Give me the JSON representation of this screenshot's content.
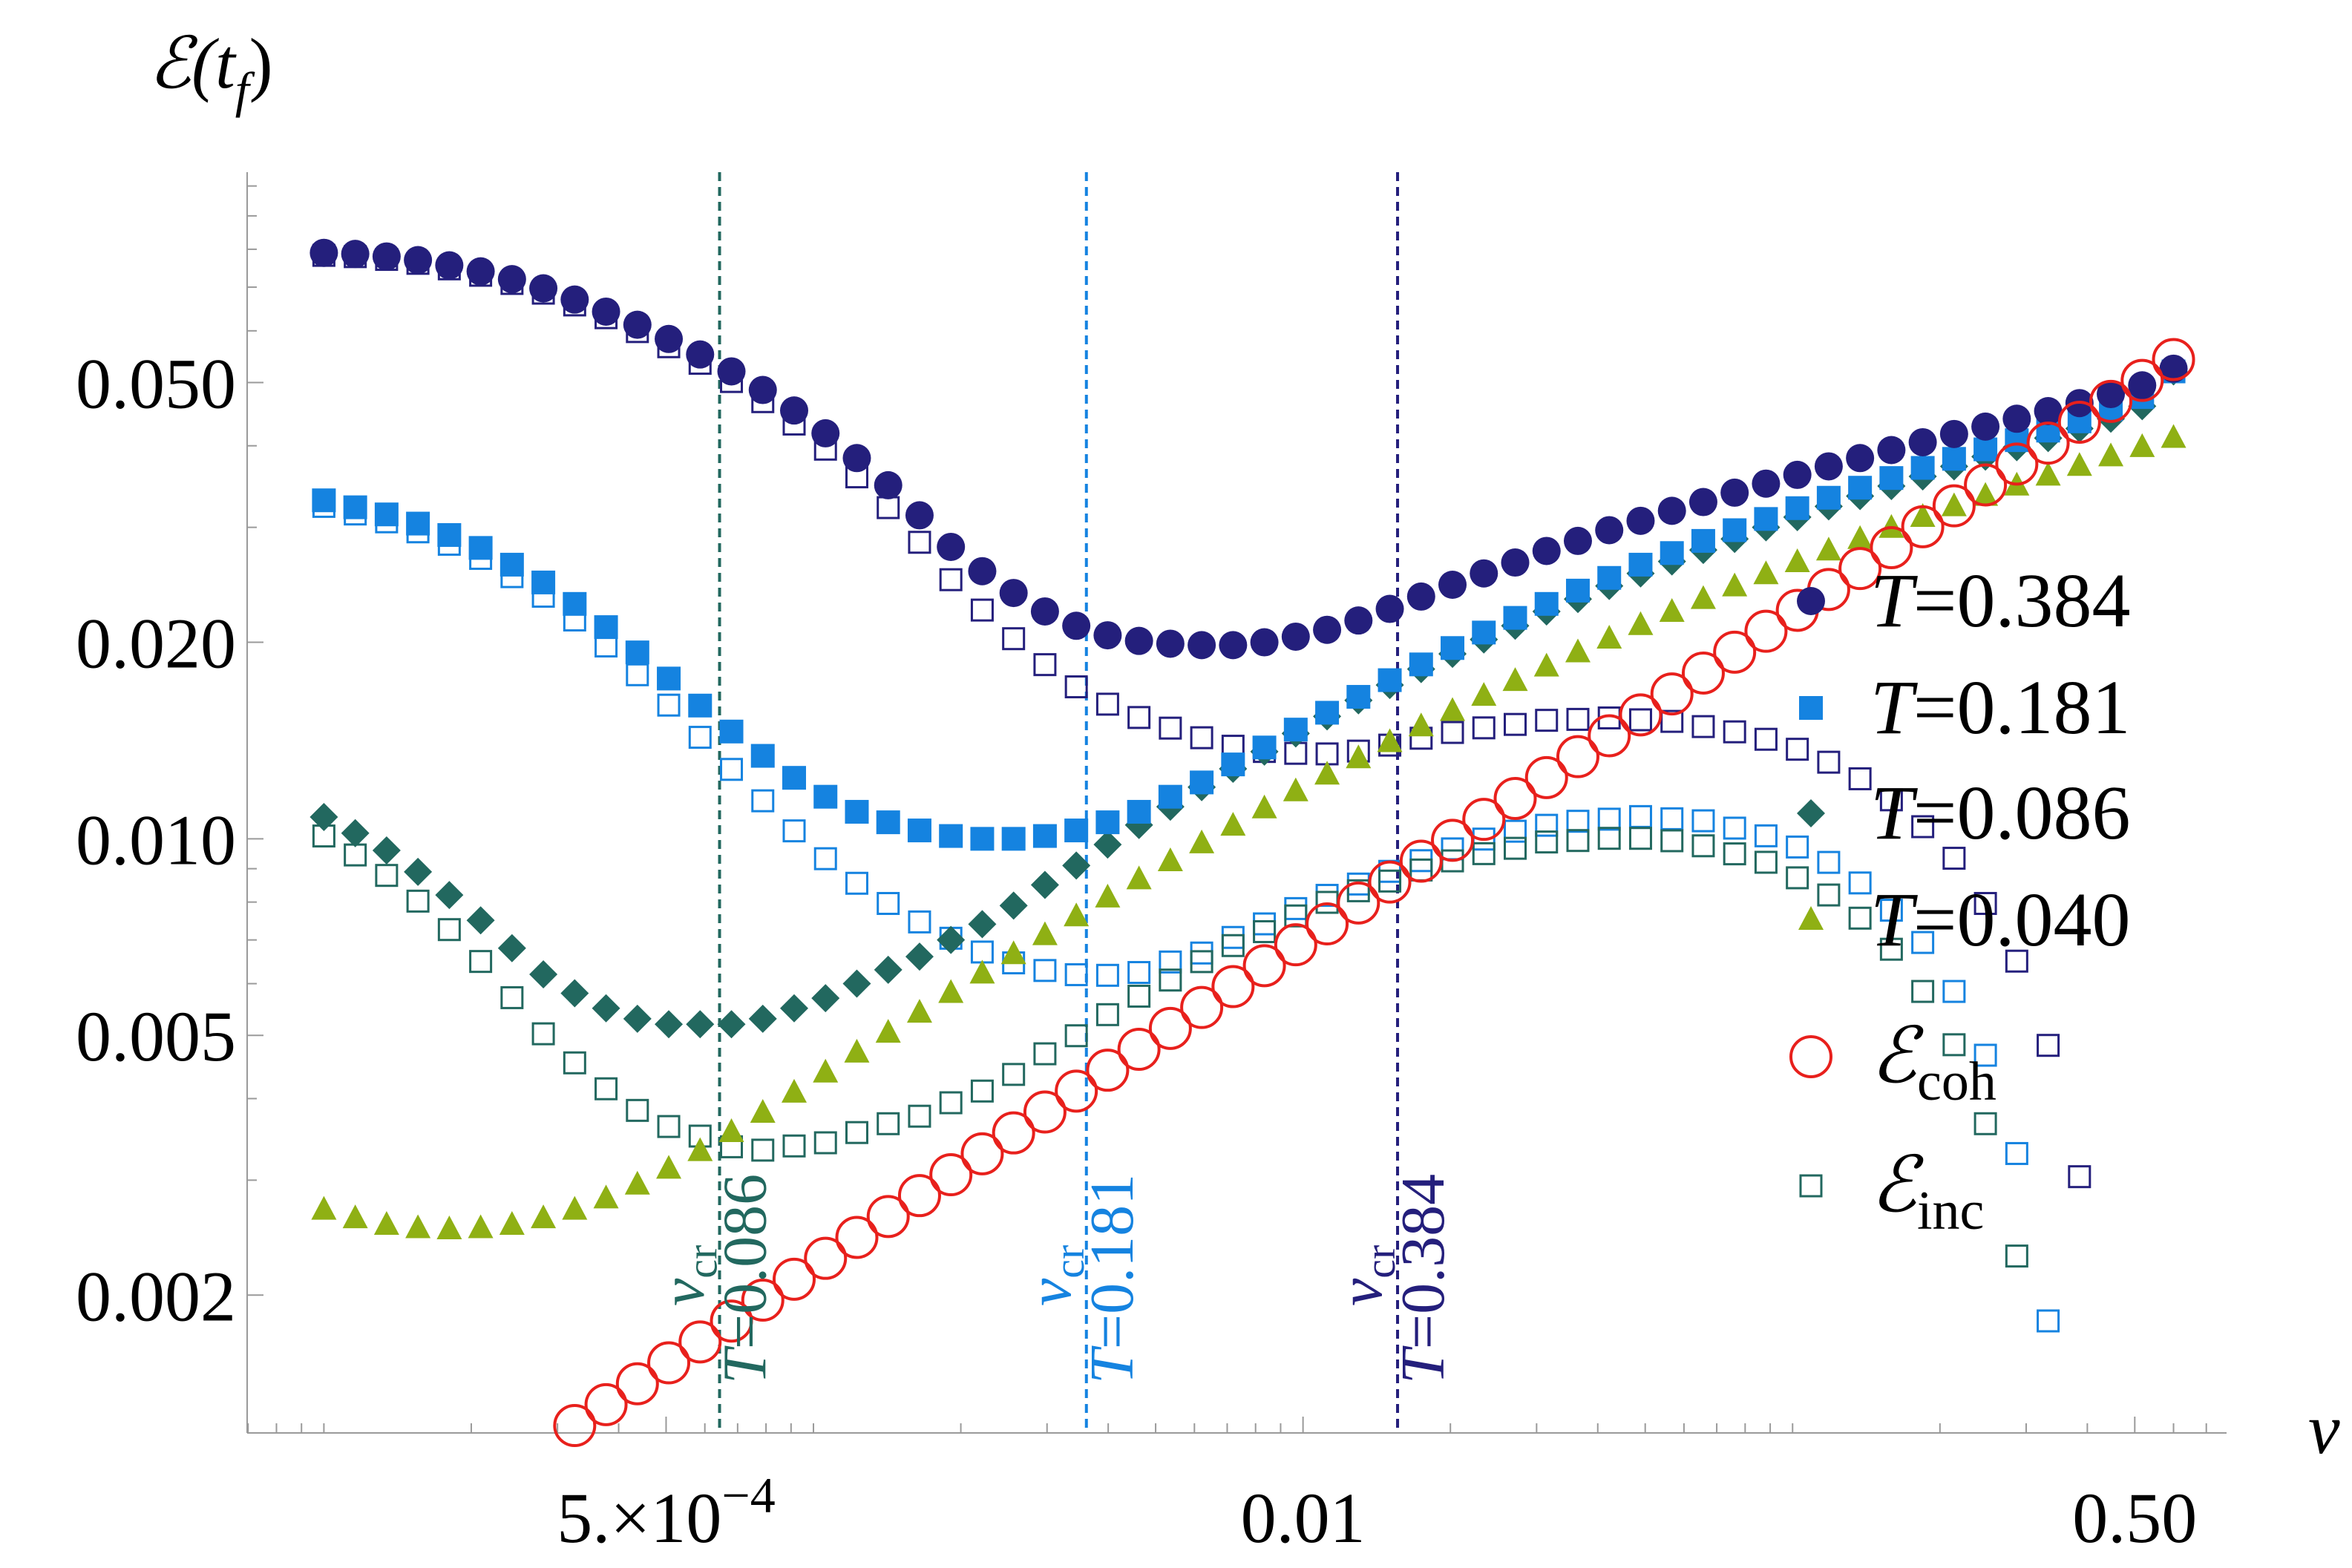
{
  "chart_data": {
    "type": "scatter",
    "x_scale": "log",
    "y_scale": "log",
    "xlim": [
      6.97e-05,
      0.77
    ],
    "ylim": [
      0.00123,
      0.105
    ],
    "ylabel": {
      "main": "ℰ(t",
      "sub": "f",
      "close": ")"
    },
    "xlabel": "v",
    "x_ticks": [
      {
        "value": 0.0005,
        "label_base": "5.×10",
        "label_exp": "−4"
      },
      {
        "value": 0.01,
        "label": "0.01"
      },
      {
        "value": 0.5,
        "label": "0.50"
      }
    ],
    "y_ticks": [
      {
        "value": 0.05,
        "label": "0.050"
      },
      {
        "value": 0.02,
        "label": "0.020"
      },
      {
        "value": 0.01,
        "label": "0.010"
      },
      {
        "value": 0.005,
        "label": "0.005"
      },
      {
        "value": 0.002,
        "label": "0.002"
      }
    ],
    "legend": {
      "position": "right",
      "entries": [
        {
          "marker": "circle",
          "color": "#241F7C",
          "prefix": "T",
          "value": "=0.384"
        },
        {
          "marker": "square",
          "color": "#1583E0",
          "prefix": "T",
          "value": "=0.181"
        },
        {
          "marker": "diamond",
          "color": "#22685F",
          "prefix": "T",
          "value": "=0.086"
        },
        {
          "marker": "triangle",
          "color": "#8FB014",
          "prefix": "T",
          "value": "=0.040"
        },
        {
          "marker": "open-circle",
          "color": "#E8201C",
          "prefix": "ℰ",
          "value": "coh"
        },
        {
          "marker": "open-square",
          "color": "#22685F",
          "prefix": "ℰ",
          "value": "inc"
        }
      ]
    },
    "critical_lines": [
      {
        "x": 0.000643,
        "color": "#22685F",
        "v_label": "v",
        "v_sub": "cr",
        "T_label": "T",
        "T_value": "=0.086"
      },
      {
        "x": 0.00361,
        "color": "#1583E0",
        "v_label": "v",
        "v_sub": "cr",
        "T_label": "T",
        "T_value": "=0.181"
      },
      {
        "x": 0.0156,
        "color": "#241F7C",
        "v_label": "v",
        "v_sub": "cr",
        "T_label": "T",
        "T_value": "=0.384"
      }
    ],
    "coherent_model": {
      "x_start": 0.0001,
      "x_end": 0.6,
      "n_points": 60,
      "A": 0.07,
      "exponent": 0.5
    },
    "series": [
      {
        "name": "T=0.384",
        "color": "#241F7C",
        "marker": "circle",
        "filled": true,
        "v_cr": 0.0156,
        "y": [
          0.079,
          0.0787,
          0.078,
          0.077,
          0.0756,
          0.074,
          0.072,
          0.0697,
          0.067,
          0.0642,
          0.0613,
          0.0583,
          0.0552,
          0.052,
          0.0487,
          0.0453,
          0.0418,
          0.0383,
          0.0348,
          0.0313,
          0.028,
          0.0257,
          0.0238,
          0.0223,
          0.0212,
          0.0205,
          0.0201,
          0.0199,
          0.0198,
          0.0198,
          0.02,
          0.0204,
          0.0209,
          0.0216,
          0.0225,
          0.0235,
          0.0245,
          0.0255,
          0.0265,
          0.0276,
          0.0286,
          0.0297,
          0.0307,
          0.0318,
          0.0328,
          0.0339,
          0.035,
          0.0361,
          0.0372,
          0.0383,
          0.0394,
          0.0405,
          0.0417,
          0.0428,
          0.044,
          0.0452,
          0.0465,
          0.048,
          0.0495,
          0.0525
        ]
      },
      {
        "name": "T=0.181",
        "color": "#1583E0",
        "marker": "square",
        "filled": true,
        "v_cr": 0.00361,
        "y": [
          0.033,
          0.0322,
          0.0314,
          0.0304,
          0.0292,
          0.0279,
          0.0263,
          0.0247,
          0.0229,
          0.0211,
          0.0193,
          0.0176,
          0.016,
          0.0146,
          0.0134,
          0.0124,
          0.0116,
          0.011,
          0.0106,
          0.0103,
          0.0101,
          0.01,
          0.01,
          0.0101,
          0.0103,
          0.0106,
          0.011,
          0.0116,
          0.0122,
          0.013,
          0.0138,
          0.0147,
          0.0156,
          0.0165,
          0.0175,
          0.0185,
          0.0196,
          0.0207,
          0.0218,
          0.0229,
          0.024,
          0.0251,
          0.0263,
          0.0274,
          0.0286,
          0.0297,
          0.0309,
          0.0321,
          0.0333,
          0.0345,
          0.0357,
          0.037,
          0.0382,
          0.0395,
          0.0408,
          0.0422,
          0.0436,
          0.0455,
          0.0475,
          0.052
        ]
      },
      {
        "name": "T=0.086",
        "color": "#22685F",
        "marker": "diamond",
        "filled": true,
        "v_cr": 0.000643,
        "y": [
          0.0108,
          0.0102,
          0.0096,
          0.0089,
          0.0082,
          0.0075,
          0.0068,
          0.0062,
          0.0058,
          0.0055,
          0.0053,
          0.0052,
          0.0052,
          0.0052,
          0.0053,
          0.0055,
          0.0057,
          0.006,
          0.0063,
          0.0066,
          0.007,
          0.0074,
          0.0079,
          0.0085,
          0.0091,
          0.0098,
          0.0105,
          0.0112,
          0.012,
          0.0128,
          0.0136,
          0.0145,
          0.0154,
          0.0163,
          0.0172,
          0.0182,
          0.0192,
          0.0202,
          0.0212,
          0.0223,
          0.0233,
          0.0244,
          0.0255,
          0.0266,
          0.0277,
          0.0288,
          0.03,
          0.0311,
          0.0323,
          0.0335,
          0.0347,
          0.0359,
          0.0372,
          0.0385,
          0.0398,
          0.0411,
          0.0425,
          0.044,
          0.046,
          0.052
        ]
      },
      {
        "name": "T=0.040",
        "color": "#8FB014",
        "marker": "triangle",
        "filled": true,
        "y": [
          0.0027,
          0.00262,
          0.00256,
          0.00253,
          0.00252,
          0.00253,
          0.00256,
          0.00262,
          0.0027,
          0.00281,
          0.00295,
          0.00312,
          0.00332,
          0.00355,
          0.0038,
          0.00408,
          0.00438,
          0.0047,
          0.00504,
          0.00541,
          0.0058,
          0.00621,
          0.00665,
          0.00711,
          0.0076,
          0.00812,
          0.00866,
          0.00923,
          0.00983,
          0.01046,
          0.01112,
          0.01181,
          0.01253,
          0.01327,
          0.01405,
          0.01485,
          0.01568,
          0.01654,
          0.01743,
          0.01834,
          0.01928,
          0.02024,
          0.02123,
          0.02224,
          0.02327,
          0.02433,
          0.0254,
          0.0265,
          0.02762,
          0.02876,
          0.02991,
          0.03109,
          0.03228,
          0.03349,
          0.03472,
          0.03596,
          0.03722,
          0.0385,
          0.03978,
          0.04108
        ]
      }
    ],
    "incoherent_model": {
      "x_start": 0.0001,
      "x_end": 0.6,
      "n_points": 60,
      "visible_above": 0.00123
    }
  }
}
